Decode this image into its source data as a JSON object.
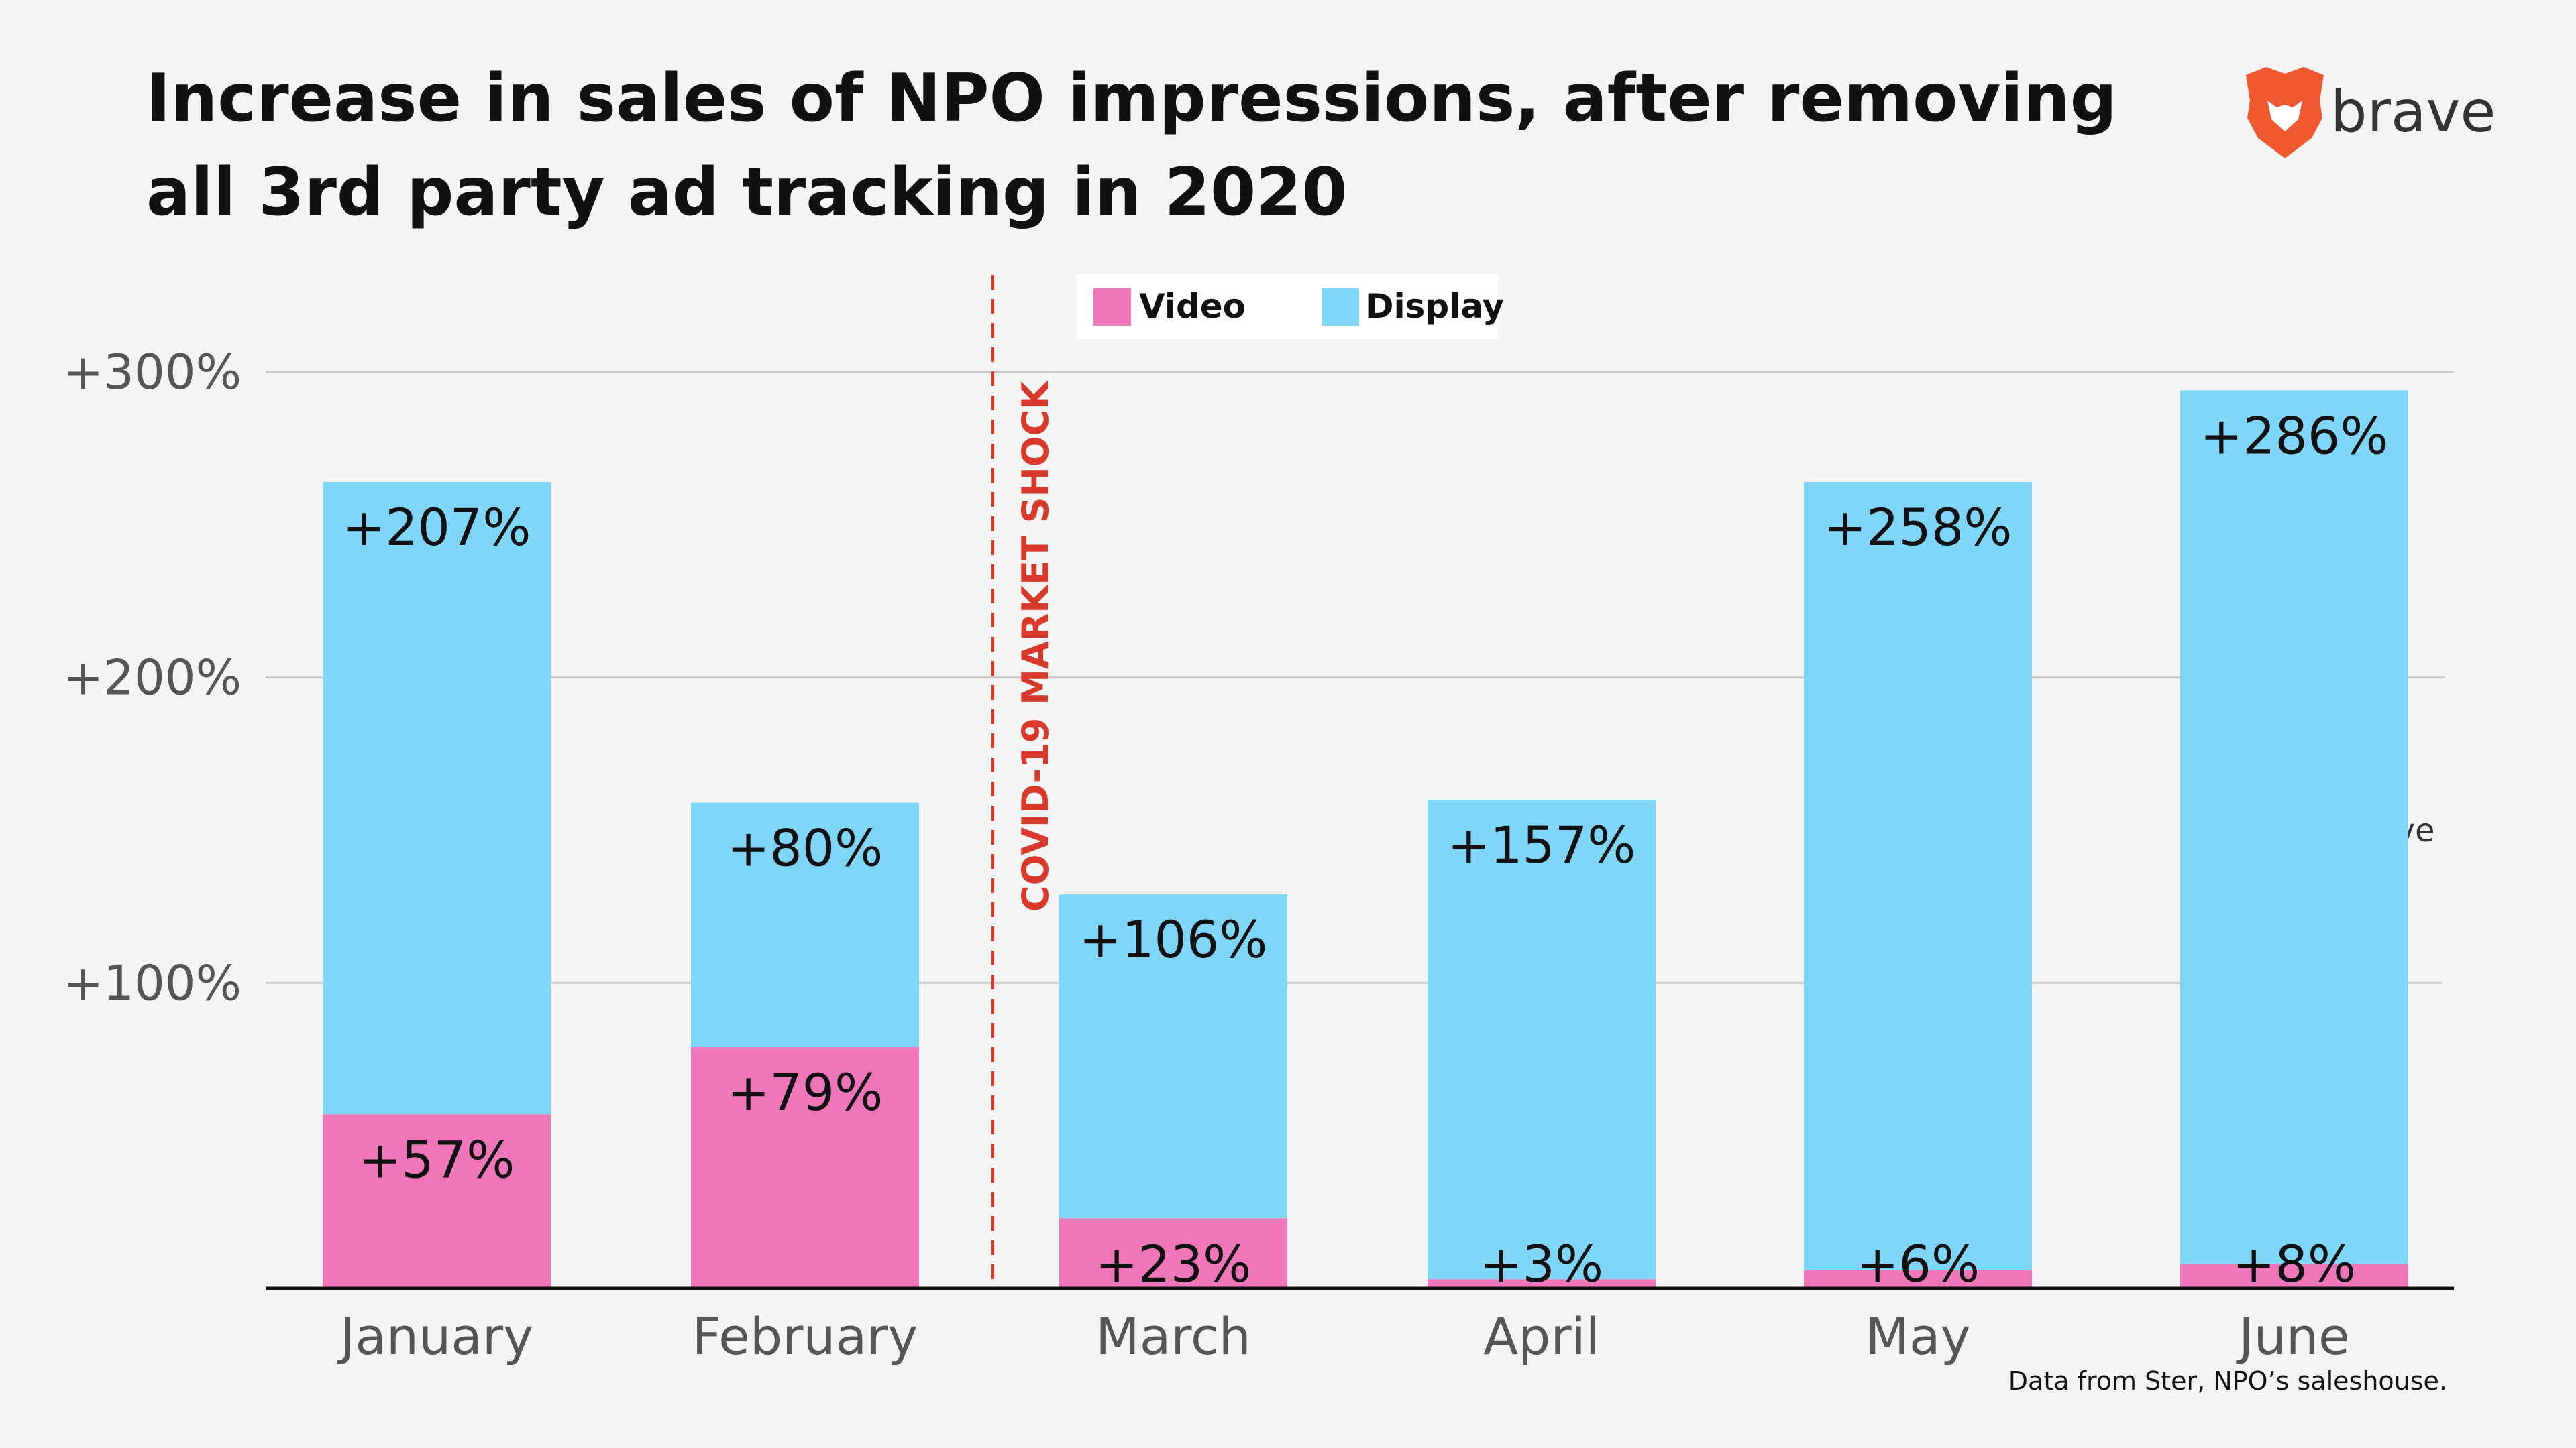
{
  "title_lines": [
    "Increase in sales of NPO impressions, after removing",
    "all 3rd party ad tracking in 2020"
  ],
  "source_note": "Data from Ster, NPO’s saleshouse.",
  "brand": {
    "name": "brave",
    "logo_icon": "brave-lion-icon",
    "color": "#f0582f"
  },
  "annotation": {
    "text": "COVID-19 MARKET SHOCK",
    "color": "#d9392b"
  },
  "colors": {
    "video": "#ee76b9",
    "display": "#80d6f9",
    "background": "#f4f4f4",
    "grid": "#c8c8c8",
    "axis": "#111111"
  },
  "chart_data": {
    "type": "bar",
    "stacked": true,
    "categories": [
      "January",
      "February",
      "March",
      "April",
      "May",
      "June"
    ],
    "series": [
      {
        "name": "Video",
        "values": [
          57,
          79,
          23,
          3,
          6,
          8
        ],
        "labels": [
          "+57%",
          "+79%",
          "+23%",
          "+3%",
          "+6%",
          "+8%"
        ]
      },
      {
        "name": "Display",
        "values": [
          207,
          80,
          106,
          157,
          258,
          286
        ],
        "labels": [
          "+207%",
          "+80%",
          "+106%",
          "+157%",
          "+258%",
          "+286%"
        ]
      }
    ],
    "y_ticks": [
      {
        "value": 100,
        "label": "+100%"
      },
      {
        "value": 200,
        "label": "+200%"
      },
      {
        "value": 300,
        "label": "+300%"
      }
    ],
    "ylim": [
      0,
      300
    ],
    "grid": true,
    "legend_placement": "top-center",
    "title": "Increase in sales of NPO impressions, after removing all 3rd party ad tracking in 2020",
    "xlabel": "",
    "ylabel": ""
  }
}
